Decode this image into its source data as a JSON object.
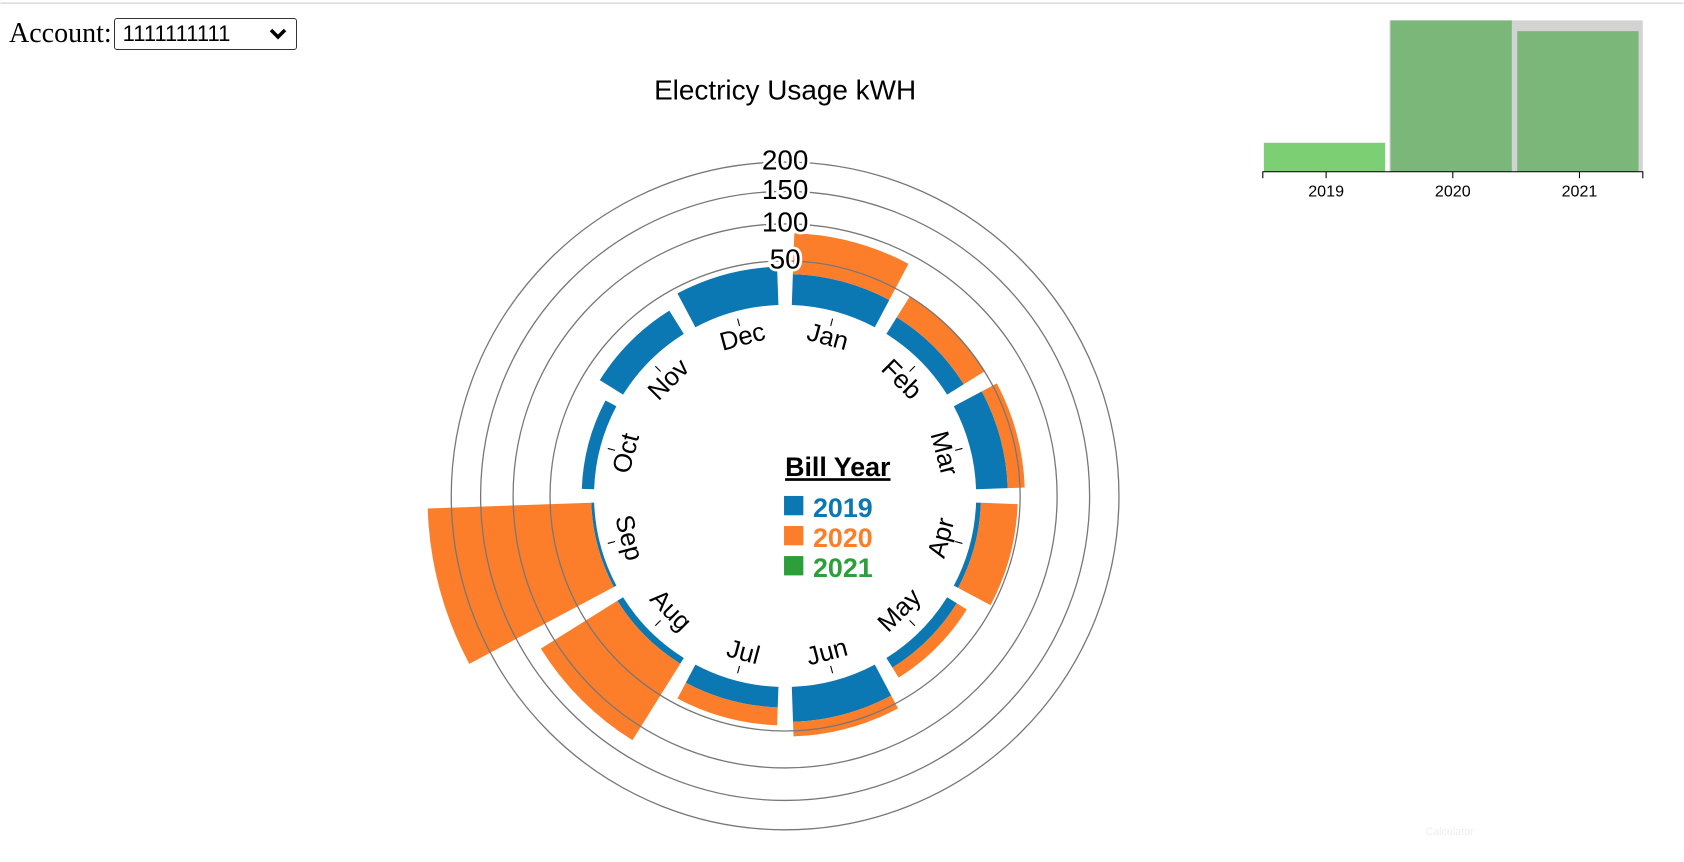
{
  "account": {
    "label": "Account:",
    "selected": "1111111111"
  },
  "footer": "Calculator",
  "chart_data": [
    {
      "type": "radial_stacked_bar",
      "title": "Electricy Usage kWH",
      "categories": [
        "Jan",
        "Feb",
        "Mar",
        "Apr",
        "May",
        "Jun",
        "Jul",
        "Aug",
        "Sep",
        "Oct",
        "Nov",
        "Dec"
      ],
      "series": [
        {
          "name": "2019",
          "color": "#0b78b3",
          "values": [
            34,
            21,
            35,
            5,
            12,
            39,
            22,
            7,
            3,
            13,
            30,
            43
          ]
        },
        {
          "name": "2020",
          "color": "#fd7e2a",
          "values": [
            53,
            30,
            21,
            42,
            13,
            18,
            21,
            117,
            241,
            null,
            null,
            null
          ]
        },
        {
          "name": "2021",
          "color": "#2c9e3a",
          "values": [
            null,
            null,
            null,
            null,
            null,
            null,
            null,
            null,
            null,
            null,
            null,
            null
          ]
        }
      ],
      "legend_title": "Bill Year",
      "rlim": [
        0,
        200
      ],
      "rticks": [
        50,
        100,
        150,
        200
      ]
    },
    {
      "type": "bar",
      "categories": [
        "2019",
        "2020",
        "2021"
      ],
      "values": [
        27,
        141,
        131
      ],
      "colors": [
        "#7dcf73",
        "#7cb77a",
        "#7cb77a"
      ],
      "ylim": [
        0,
        143
      ]
    }
  ]
}
